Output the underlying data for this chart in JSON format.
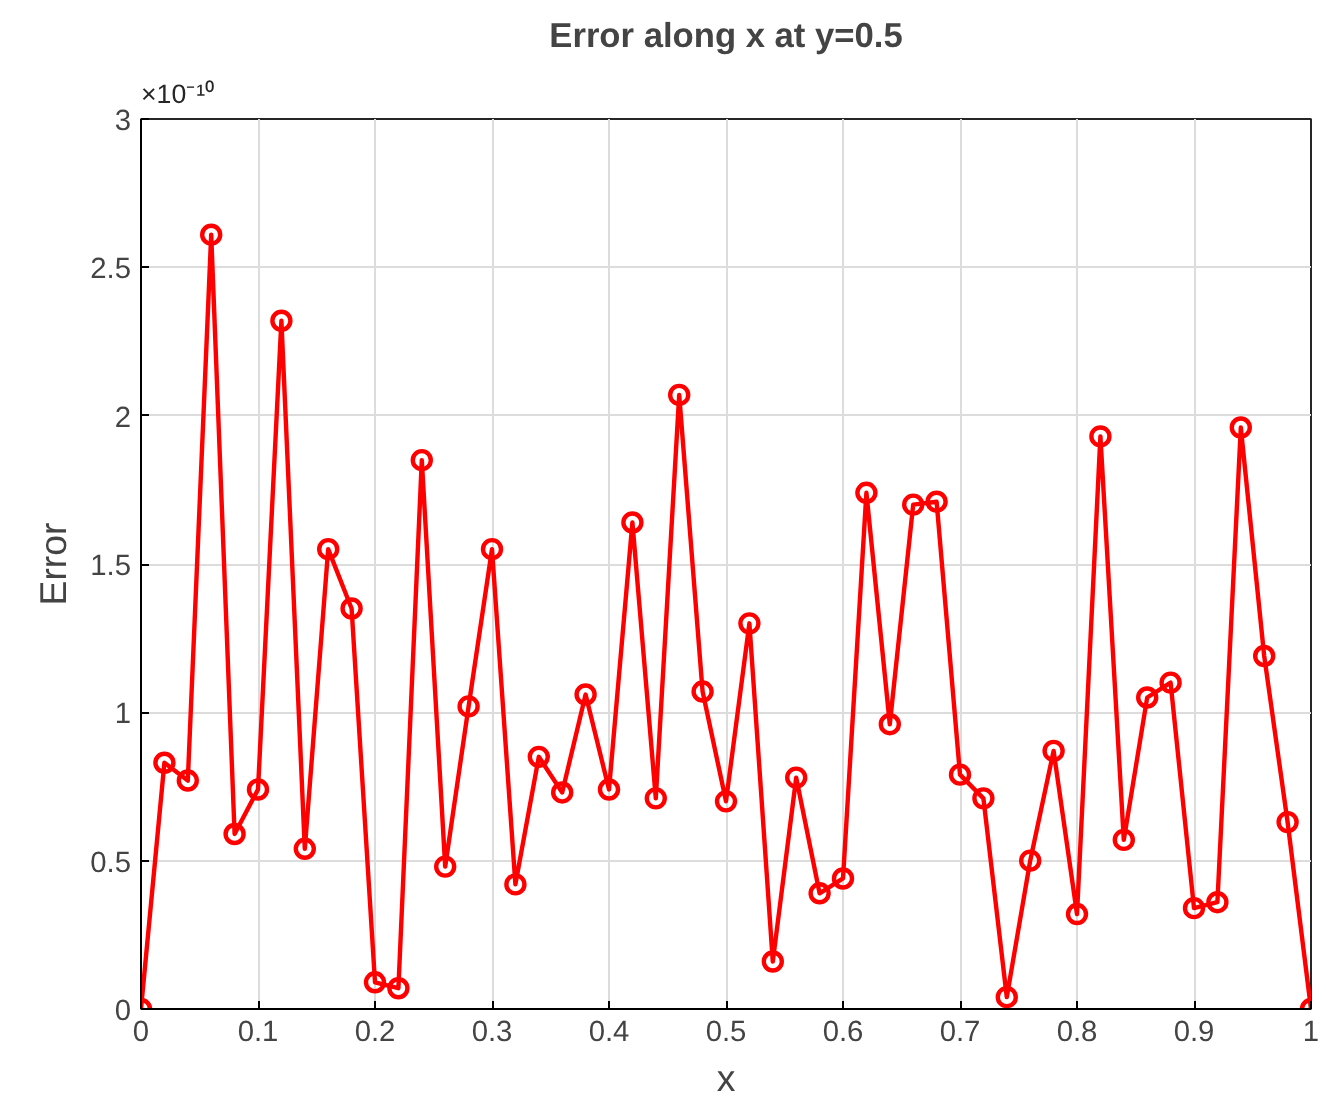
{
  "chart_data": {
    "type": "line",
    "title": "Error along x at y=0.5",
    "xlabel": "x",
    "ylabel": "Error",
    "annotations": [
      "×10⁻¹⁰"
    ],
    "x": [
      0,
      0.02,
      0.04,
      0.06,
      0.08,
      0.1,
      0.12,
      0.14,
      0.16,
      0.18,
      0.2,
      0.22,
      0.24,
      0.26,
      0.28,
      0.3,
      0.32,
      0.34,
      0.36,
      0.38,
      0.4,
      0.42,
      0.44,
      0.46,
      0.48,
      0.5,
      0.52,
      0.54,
      0.56,
      0.58,
      0.6,
      0.62,
      0.64,
      0.66,
      0.68,
      0.7,
      0.72,
      0.74,
      0.76,
      0.78,
      0.8,
      0.82,
      0.84,
      0.86,
      0.88,
      0.9,
      0.92,
      0.94,
      0.96,
      0.98,
      1
    ],
    "series": [
      {
        "color": "#ff0000",
        "values": [
          0,
          0.83,
          0.77,
          2.61,
          0.59,
          0.74,
          2.32,
          0.54,
          1.55,
          1.35,
          0.09,
          0.07,
          1.85,
          0.48,
          1.02,
          1.55,
          0.42,
          0.85,
          0.73,
          1.06,
          0.74,
          1.64,
          0.71,
          2.07,
          1.07,
          0.7,
          1.3,
          0.16,
          0.78,
          0.39,
          0.44,
          1.74,
          0.96,
          1.7,
          1.71,
          0.79,
          0.71,
          0.04,
          0.5,
          0.87,
          0.32,
          1.93,
          0.57,
          1.05,
          1.1,
          0.34,
          0.36,
          1.96,
          1.19,
          0.63,
          0
        ]
      }
    ],
    "xlim": [
      0,
      1
    ],
    "ylim": [
      0,
      3
    ],
    "xticks": [
      0,
      0.1,
      0.2,
      0.3,
      0.4,
      0.5,
      0.6,
      0.7,
      0.8,
      0.9,
      1
    ],
    "yticks": [
      0,
      0.5,
      1,
      1.5,
      2,
      2.5,
      3
    ],
    "grid": true,
    "marker": "circle",
    "line_style": "solid"
  }
}
